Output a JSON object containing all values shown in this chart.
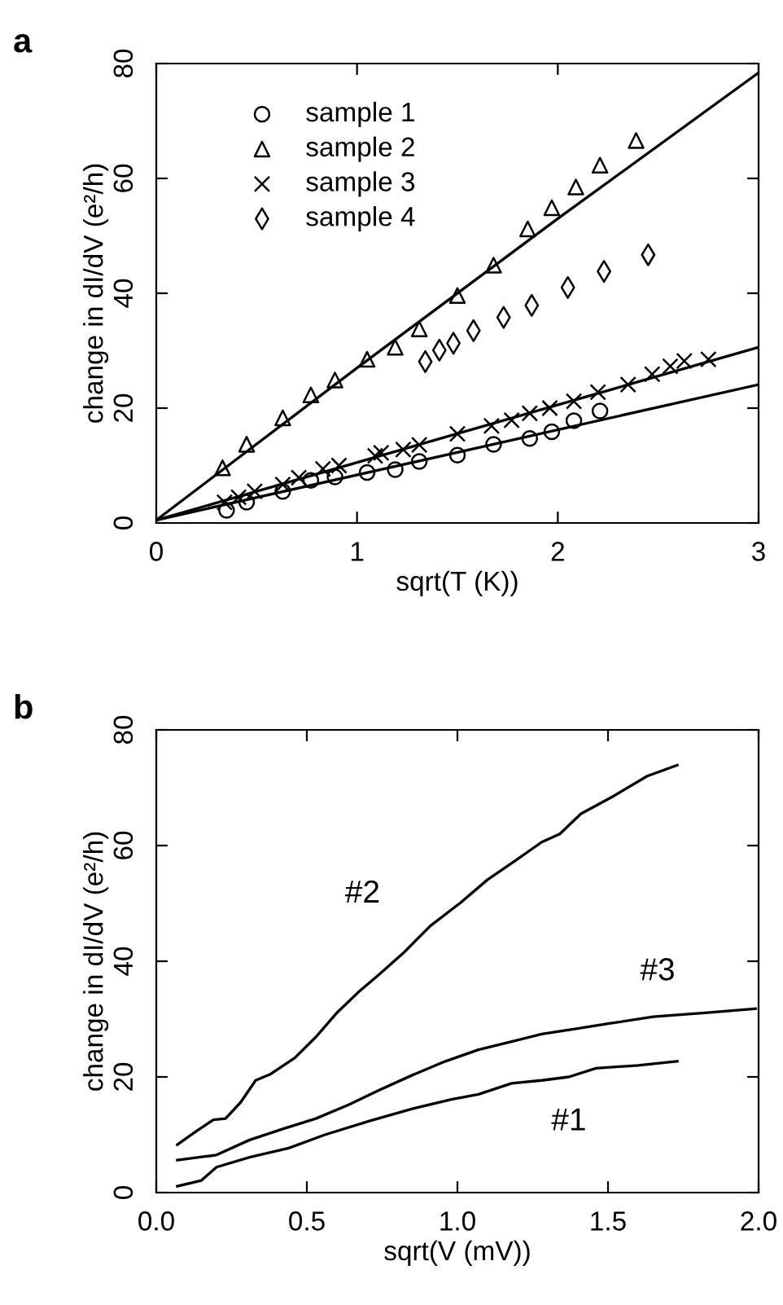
{
  "chart_data": [
    {
      "type": "scatter",
      "title": "a",
      "xlabel": "sqrt(T (K))",
      "ylabel": "change in dI/dV (e²/h)",
      "xlim": [
        0,
        3
      ],
      "ylim": [
        0,
        80
      ],
      "xticks": [
        0,
        1,
        2,
        3
      ],
      "yticks": [
        0,
        20,
        40,
        60,
        80
      ],
      "legend": "top left",
      "grid": false,
      "series": [
        {
          "name": "sample 1",
          "color": "#000000",
          "marker": "circle",
          "x": [
            0.35,
            0.45,
            0.63,
            0.77,
            0.89,
            1.05,
            1.19,
            1.31,
            1.5,
            1.68,
            1.86,
            1.97,
            2.08,
            2.21
          ],
          "values": [
            2.2,
            3.6,
            5.5,
            7.4,
            8.0,
            8.8,
            9.3,
            10.7,
            11.8,
            13.7,
            14.7,
            15.9,
            17.8,
            19.5
          ]
        },
        {
          "name": "sample 2",
          "color": "#000000",
          "marker": "triangle",
          "x": [
            0.33,
            0.45,
            0.63,
            0.77,
            0.89,
            1.05,
            1.19,
            1.31,
            1.5,
            1.68,
            1.85,
            1.97,
            2.09,
            2.21,
            2.39
          ],
          "values": [
            9.6,
            13.7,
            18.3,
            22.3,
            24.9,
            28.5,
            30.6,
            33.8,
            39.6,
            44.9,
            51.2,
            54.9,
            58.5,
            62.3,
            66.6
          ]
        },
        {
          "name": "sample 3",
          "color": "#000000",
          "marker": "cross",
          "x": [
            0.34,
            0.41,
            0.49,
            0.63,
            0.71,
            0.83,
            0.91,
            1.09,
            1.12,
            1.23,
            1.31,
            1.5,
            1.67,
            1.77,
            1.86,
            1.96,
            2.08,
            2.2,
            2.35,
            2.47,
            2.56,
            2.63,
            2.75
          ],
          "values": [
            3.6,
            4.5,
            5.5,
            6.7,
            7.9,
            9.4,
            10.0,
            11.7,
            12.2,
            12.8,
            13.6,
            15.5,
            16.9,
            17.9,
            19.1,
            20.0,
            21.2,
            22.8,
            24.1,
            25.9,
            27.3,
            28.2,
            28.5
          ]
        },
        {
          "name": "sample 4",
          "color": "#000000",
          "marker": "diamond",
          "x": [
            1.34,
            1.41,
            1.48,
            1.58,
            1.73,
            1.87,
            2.05,
            2.23,
            2.45
          ],
          "values": [
            28.1,
            30.1,
            31.3,
            33.5,
            35.8,
            37.9,
            41.0,
            43.8,
            46.7
          ]
        },
        {
          "type": "line",
          "color": "#000000",
          "marker": "none",
          "x": [
            0,
            1,
            2,
            3
          ],
          "values": [
            0.5,
            27,
            53,
            78.4
          ]
        },
        {
          "type": "line",
          "color": "#000000",
          "marker": "none",
          "x": [
            0,
            3
          ],
          "values": [
            0.5,
            30.6
          ]
        },
        {
          "type": "line",
          "color": "#000000",
          "marker": "none",
          "x": [
            0,
            3
          ],
          "values": [
            0.5,
            24.1
          ]
        }
      ]
    },
    {
      "type": "line",
      "title": "b",
      "xlabel": "sqrt(V (mV))",
      "ylabel": "change in dI/dV (e²/h)",
      "xlim": [
        0,
        2
      ],
      "ylim": [
        0,
        80
      ],
      "xticks": [
        {
          "value": 0,
          "label": "0.0"
        },
        0.5,
        {
          "value": 1,
          "label": "1.0"
        },
        1.5,
        {
          "value": 2,
          "label": "2.0"
        }
      ],
      "yticks": [
        0,
        20,
        40,
        60,
        80
      ],
      "grid": false,
      "legend": false,
      "annotations": [
        {
          "text": "#2",
          "x": 0.82,
          "y": 41.4
        },
        {
          "text": "#3",
          "x": 1.83,
          "y": 31.1
        },
        {
          "text": "#1",
          "x": 1.37,
          "y": 20.0
        }
      ],
      "series": [
        {
          "color": "#000000",
          "x": [
            0.07,
            0.13,
            0.19,
            0.23,
            0.28,
            0.33,
            0.38,
            0.46,
            0.53,
            0.6,
            0.67,
            0.74,
            0.82,
            0.91,
            1.01,
            1.1,
            1.19,
            1.28,
            1.34,
            1.41,
            1.52,
            1.63,
            1.73
          ],
          "values": [
            8.3,
            10.5,
            12.6,
            12.8,
            15.6,
            19.4,
            20.5,
            23.3,
            26.9,
            31.1,
            34.6,
            37.7,
            41.4,
            46.1,
            50.1,
            54.1,
            57.3,
            60.6,
            62.0,
            65.5,
            68.6,
            72.0,
            73.9
          ]
        },
        {
          "color": "#000000",
          "x": [
            0.07,
            0.2,
            0.31,
            0.42,
            0.53,
            0.64,
            0.74,
            0.85,
            0.96,
            1.07,
            1.18,
            1.28,
            1.39,
            1.5,
            1.65,
            1.83,
            1.99
          ],
          "values": [
            5.6,
            6.5,
            9.1,
            11.0,
            12.8,
            15.2,
            17.7,
            20.3,
            22.7,
            24.7,
            26.1,
            27.4,
            28.3,
            29.2,
            30.4,
            31.1,
            31.8
          ]
        },
        {
          "color": "#000000",
          "x": [
            0.07,
            0.15,
            0.2,
            0.31,
            0.44,
            0.56,
            0.71,
            0.85,
            0.98,
            1.07,
            1.18,
            1.28,
            1.37,
            1.46,
            1.6,
            1.73
          ],
          "values": [
            1.1,
            2.1,
            4.4,
            6.1,
            7.7,
            10.0,
            12.4,
            14.5,
            16.1,
            17.0,
            18.9,
            19.4,
            20.0,
            21.5,
            22.0,
            22.7
          ]
        }
      ]
    }
  ]
}
